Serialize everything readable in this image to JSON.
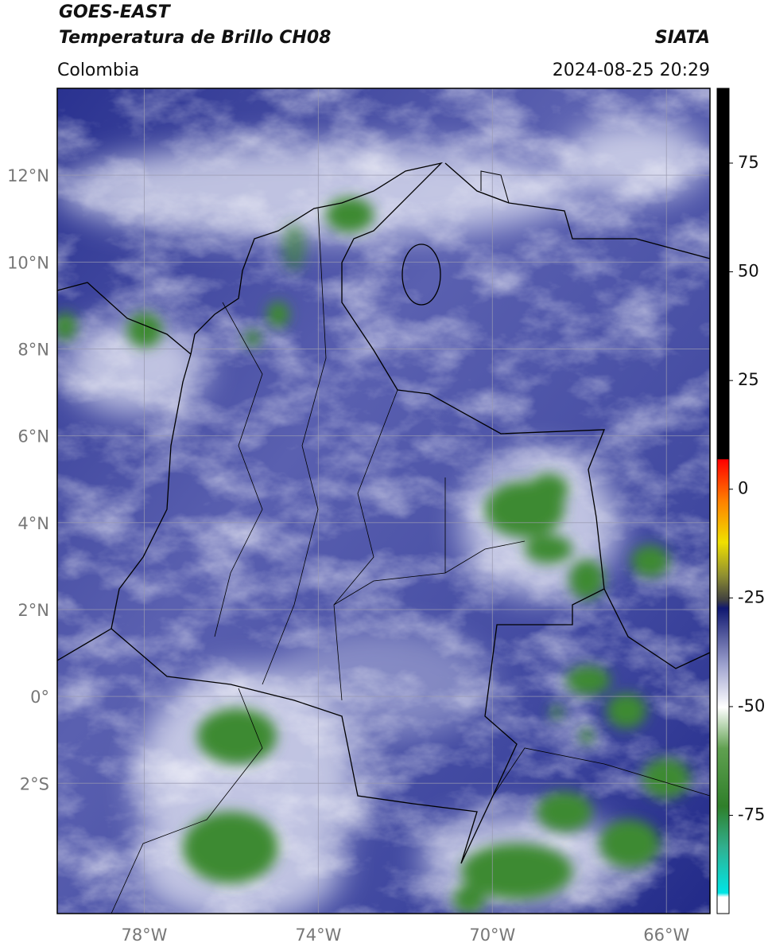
{
  "header": {
    "title": "GOES-EAST",
    "subtitle": "Temperatura de Brillo CH08",
    "source": "SIATA",
    "region": "Colombia",
    "timestamp": "2024-08-25 20:29"
  },
  "map": {
    "xlim": [
      -80,
      -65
    ],
    "ylim": [
      -5,
      14
    ],
    "xticks": [
      {
        "value": -78,
        "label": "78°W"
      },
      {
        "value": -74,
        "label": "74°W"
      },
      {
        "value": -70,
        "label": "70°W"
      },
      {
        "value": -66,
        "label": "66°W"
      }
    ],
    "yticks": [
      {
        "value": -2,
        "label": "2°S"
      },
      {
        "value": 0,
        "label": "0°"
      },
      {
        "value": 2,
        "label": "2°N"
      },
      {
        "value": 4,
        "label": "4°N"
      },
      {
        "value": 6,
        "label": "6°N"
      },
      {
        "value": 8,
        "label": "8°N"
      },
      {
        "value": 10,
        "label": "10°N"
      },
      {
        "value": 12,
        "label": "12°N"
      }
    ],
    "grid": true
  },
  "colorbar": {
    "lim": [
      -97.6,
      92.2
    ],
    "ticks": [
      -75,
      -50,
      -25,
      0,
      25,
      50,
      75
    ]
  }
}
